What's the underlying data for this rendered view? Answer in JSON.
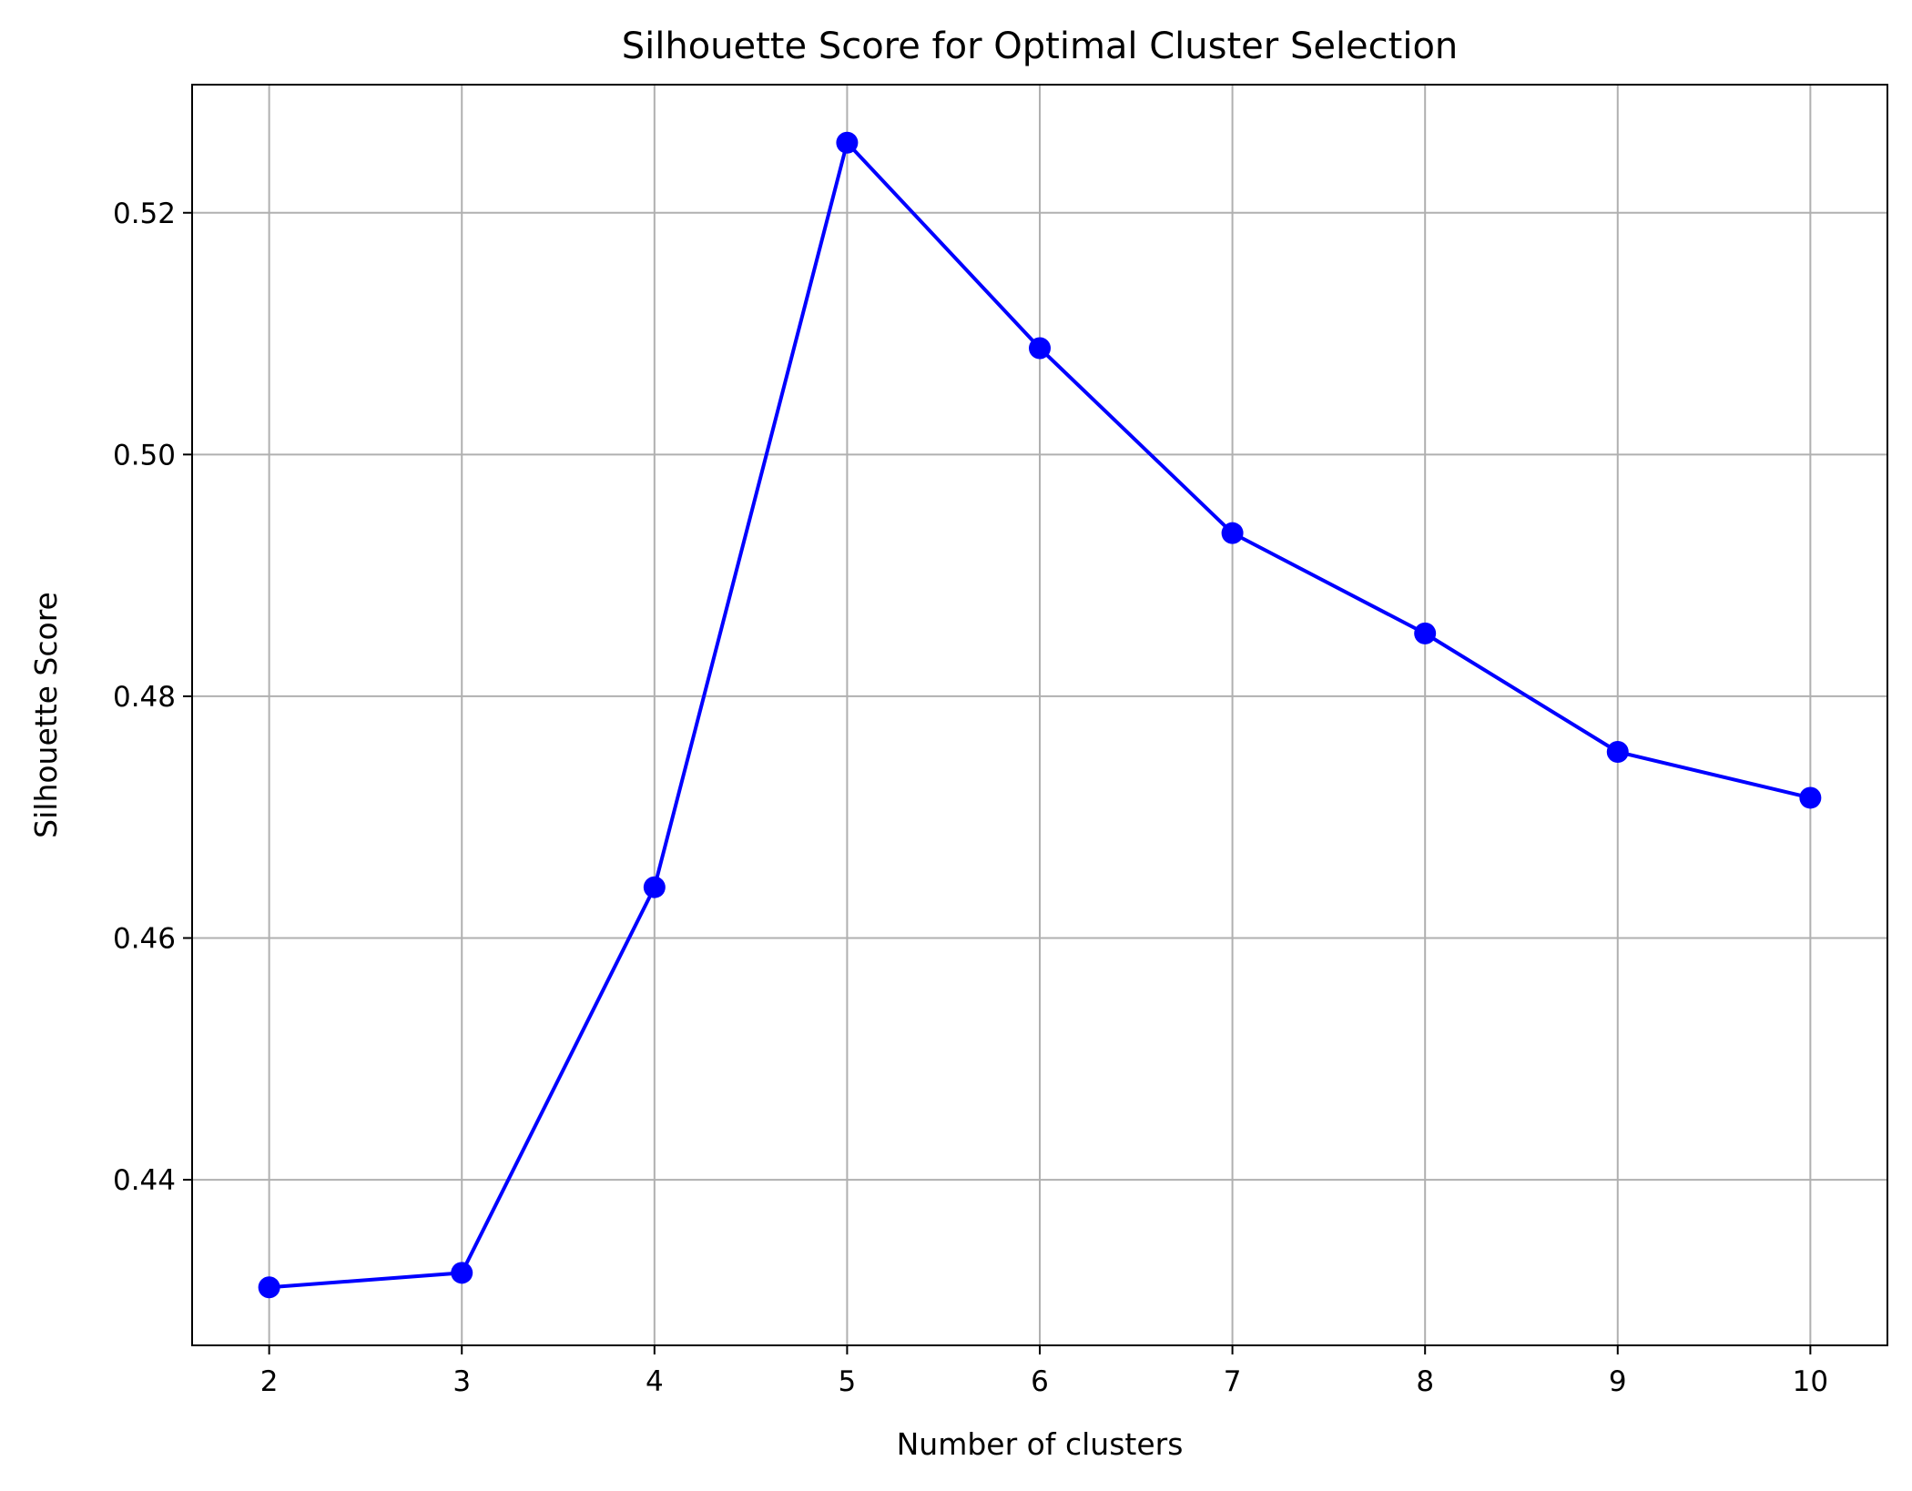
{
  "chart_data": {
    "type": "line",
    "title": "Silhouette Score for Optimal Cluster Selection",
    "xlabel": "Number of clusters",
    "ylabel": "Silhouette Score",
    "x": [
      2,
      3,
      4,
      5,
      6,
      7,
      8,
      9,
      10
    ],
    "series": [
      {
        "values": [
          0.4311,
          0.4323,
          0.4642,
          0.5258,
          0.5088,
          0.4935,
          0.4852,
          0.4754,
          0.4716
        ],
        "color": "#0000ff",
        "marker": "circle"
      }
    ],
    "xticks": [
      "2",
      "3",
      "4",
      "5",
      "6",
      "7",
      "8",
      "9",
      "10"
    ],
    "yticks": [
      {
        "value": 0.44,
        "label": "0.44"
      },
      {
        "value": 0.46,
        "label": "0.46"
      },
      {
        "value": 0.48,
        "label": "0.48"
      },
      {
        "value": 0.5,
        "label": "0.50"
      },
      {
        "value": 0.52,
        "label": "0.52"
      }
    ],
    "xlim": [
      1.6,
      10.4
    ],
    "ylim": [
      0.4263,
      0.5306
    ],
    "grid": true,
    "grid_color": "#b0b0b0"
  }
}
